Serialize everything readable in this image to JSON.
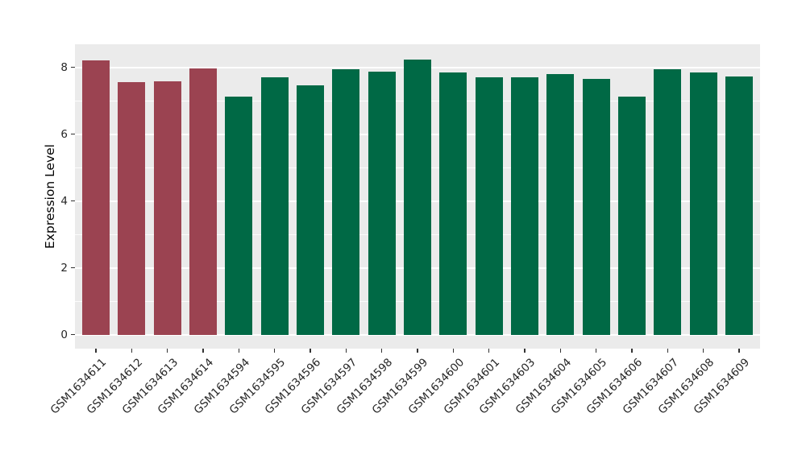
{
  "chart_data": {
    "type": "bar",
    "title": "",
    "xlabel": "",
    "ylabel": "Expression Level",
    "categories": [
      "GSM1634611",
      "GSM1634612",
      "GSM1634613",
      "GSM1634614",
      "GSM1634594",
      "GSM1634595",
      "GSM1634596",
      "GSM1634597",
      "GSM1634598",
      "GSM1634599",
      "GSM1634600",
      "GSM1634601",
      "GSM1634603",
      "GSM1634604",
      "GSM1634605",
      "GSM1634606",
      "GSM1634607",
      "GSM1634608",
      "GSM1634609"
    ],
    "values": [
      8.22,
      7.56,
      7.58,
      7.96,
      7.12,
      7.7,
      7.46,
      7.95,
      7.86,
      8.23,
      7.84,
      7.7,
      7.71,
      7.79,
      7.66,
      7.12,
      7.94,
      7.85,
      7.73
    ],
    "groups": [
      "highlight",
      "highlight",
      "highlight",
      "highlight",
      "default",
      "default",
      "default",
      "default",
      "default",
      "default",
      "default",
      "default",
      "default",
      "default",
      "default",
      "default",
      "default",
      "default",
      "default"
    ],
    "group_colors": {
      "highlight": "#9B4351",
      "default": "#006945"
    },
    "ylim": [
      -0.42,
      8.69
    ],
    "yticks": [
      0,
      2,
      4,
      6,
      8
    ],
    "minor_yticks": [
      1,
      3,
      5,
      7
    ],
    "plot_background": "#EBEBEB",
    "gridline_color": "#FFFFFF",
    "grid": true,
    "legend": "none",
    "x_tick_rotation_deg": 45
  }
}
